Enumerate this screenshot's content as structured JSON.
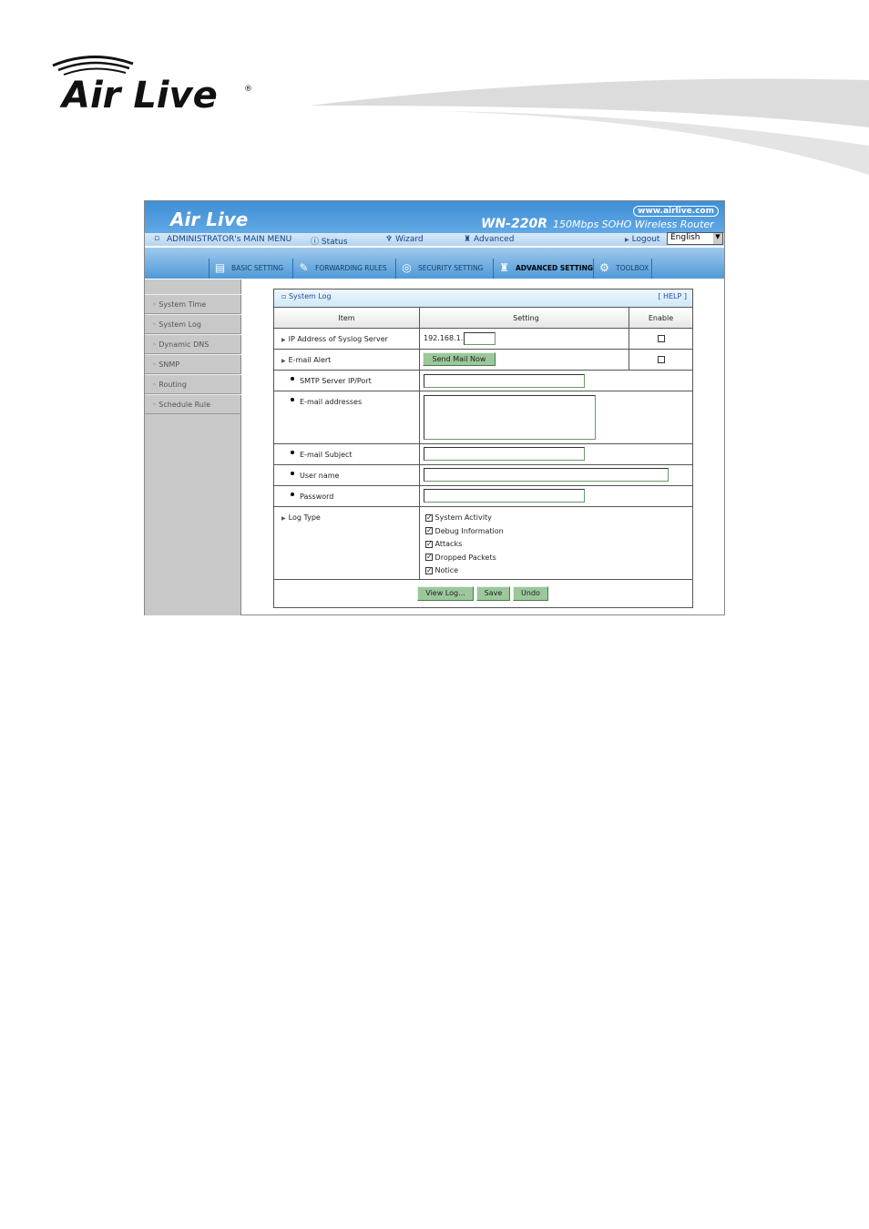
{
  "doc_logo": {
    "text": "Air Live"
  },
  "header": {
    "logo": "Air Live",
    "url": "www.airlive.com",
    "model": "WN-220R",
    "desc": "150Mbps SOHO Wireless Router"
  },
  "nav": {
    "main_menu": "ADMINISTRATOR's MAIN MENU",
    "status": "Status",
    "wizard": "Wizard",
    "advanced": "Advanced",
    "logout": "Logout",
    "language": "English"
  },
  "tabs": [
    {
      "label": "BASIC SETTING"
    },
    {
      "label": "FORWARDING RULES"
    },
    {
      "label": "SECURITY SETTING"
    },
    {
      "label": "ADVANCED SETTING",
      "active": true
    },
    {
      "label": "TOOLBOX"
    }
  ],
  "sidebar": {
    "items": [
      {
        "label": "System Time"
      },
      {
        "label": "System Log"
      },
      {
        "label": "Dynamic DNS"
      },
      {
        "label": "SNMP"
      },
      {
        "label": "Routing"
      },
      {
        "label": "Schedule Rule"
      }
    ]
  },
  "panel": {
    "title": "System Log",
    "help": "[ HELP ]",
    "col_item": "Item",
    "col_setting": "Setting",
    "col_enable": "Enable",
    "ip_label": "IP Address of Syslog Server",
    "ip_prefix": "192.168.1.",
    "ip_value": "",
    "ip_enabled": false,
    "email_alert_label": "E-mail Alert",
    "send_mail": "Send Mail Now",
    "email_enabled": false,
    "smtp_label": "SMTP Server IP/Port",
    "smtp_value": "",
    "addresses_label": "E-mail addresses",
    "addresses_value": "",
    "subject_label": "E-mail Subject",
    "subject_value": "",
    "user_label": "User name",
    "user_value": "",
    "password_label": "Password",
    "password_value": "",
    "log_type_label": "Log Type",
    "log_types": [
      {
        "label": "System Activity",
        "checked": true
      },
      {
        "label": "Debug Information",
        "checked": true
      },
      {
        "label": "Attacks",
        "checked": true
      },
      {
        "label": "Dropped Packets",
        "checked": true
      },
      {
        "label": "Notice",
        "checked": true
      }
    ],
    "view_log": "View Log...",
    "save": "Save",
    "undo": "Undo"
  },
  "colors": {
    "header_blue": "#4a9ae0",
    "sidebar_gray": "#c8c8c8",
    "button_green": "#9cc79c"
  }
}
